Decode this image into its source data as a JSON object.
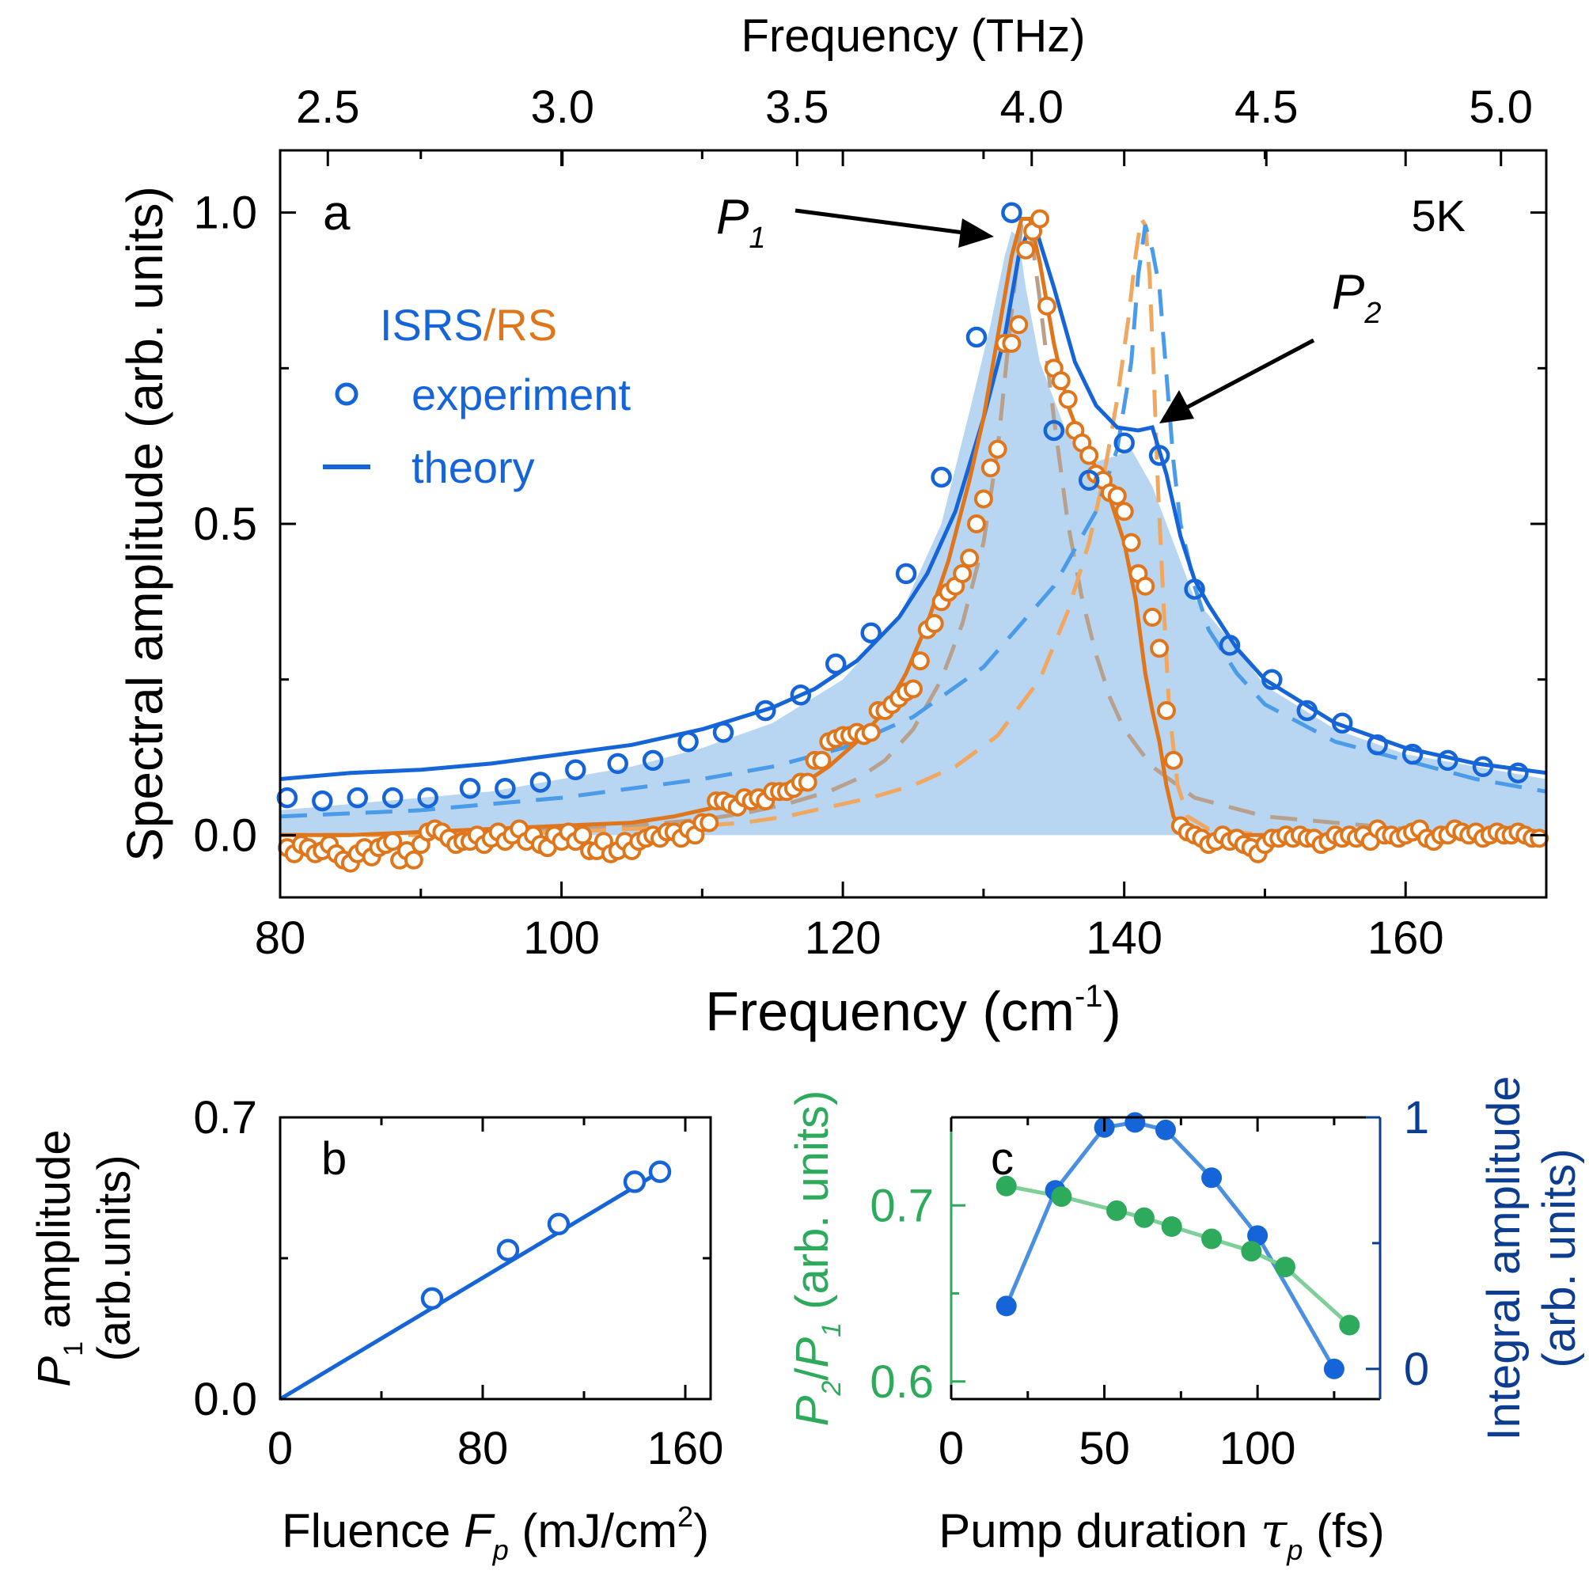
{
  "colors": {
    "blue": "#1565d8",
    "blue_light": "#4a9be8",
    "fill": "#b8d6f2",
    "orange": "#e0761c",
    "orange_dash": "#f0a860",
    "taupe": "#b8a08c",
    "green": "#2eaa5c",
    "green_line": "#7fcf99",
    "navy": "#0d3d91",
    "dot_blue": "#1565d8",
    "dot_line": "#4a8fe0"
  },
  "chart_data": [
    {
      "id": "a",
      "type": "line",
      "panel_label": "a",
      "temperature_label": "5K",
      "xlabel": "Frequency (cm",
      "xlabel_sup": "-1",
      "xlabel_end": ")",
      "xlim": [
        80,
        170
      ],
      "xticks": [
        80,
        100,
        120,
        140,
        160
      ],
      "top_xlabel": "Frequency (THz)",
      "top_xticks": [
        "2.5",
        "3.0",
        "3.5",
        "4.0",
        "4.5",
        "5.0"
      ],
      "top_xtick_values": [
        2.5,
        3.0,
        3.5,
        4.0,
        4.5,
        5.0
      ],
      "ylabel": "Spectral amplitude (arb. units)",
      "ylim": [
        -0.1,
        1.1
      ],
      "yticks": [
        "0.0",
        "0.5",
        "1.0"
      ],
      "ytick_values": [
        0.0,
        0.5,
        1.0
      ],
      "legend": {
        "title_isrs": "ISRS",
        "title_sep": "/",
        "title_rs": "RS",
        "experiment": "experiment",
        "theory": "theory"
      },
      "annotations": {
        "p1": "P",
        "p1_sub": "1",
        "p2": "P",
        "p2_sub": "2"
      },
      "isrs_experiment": {
        "x": [
          80.5,
          83,
          85.5,
          88,
          90.5,
          93.5,
          96,
          98.5,
          101,
          104,
          106.5,
          109,
          111.5,
          114.5,
          117,
          119.5,
          122,
          124.5,
          127,
          129.5,
          132,
          135,
          137.5,
          140,
          142.5,
          145,
          147.5,
          150.5,
          153,
          155.5,
          158,
          160.5,
          163,
          165.5,
          168
        ],
        "y": [
          0.06,
          0.055,
          0.06,
          0.06,
          0.06,
          0.075,
          0.075,
          0.085,
          0.105,
          0.115,
          0.12,
          0.15,
          0.165,
          0.2,
          0.225,
          0.275,
          0.325,
          0.42,
          0.575,
          0.8,
          1.0,
          0.65,
          0.57,
          0.63,
          0.61,
          0.395,
          0.305,
          0.25,
          0.2,
          0.18,
          0.145,
          0.13,
          0.12,
          0.11,
          0.1
        ]
      },
      "isrs_theory": {
        "x": [
          80,
          85,
          90,
          95,
          100,
          105,
          110,
          115,
          118,
          121,
          124,
          126,
          128,
          130,
          131.5,
          132.5,
          133.5,
          135,
          136.5,
          138,
          139.5,
          141,
          142,
          143,
          144,
          145,
          146,
          148,
          150,
          155,
          160,
          165,
          170
        ],
        "y": [
          0.09,
          0.1,
          0.105,
          0.115,
          0.13,
          0.145,
          0.17,
          0.205,
          0.235,
          0.28,
          0.35,
          0.42,
          0.52,
          0.67,
          0.8,
          0.93,
          0.99,
          0.88,
          0.76,
          0.69,
          0.655,
          0.65,
          0.655,
          0.58,
          0.48,
          0.41,
          0.37,
          0.3,
          0.25,
          0.18,
          0.14,
          0.115,
          0.1
        ]
      },
      "isrs_fill": {
        "x": [
          80,
          85,
          90,
          95,
          100,
          105,
          110,
          115,
          120,
          124,
          127,
          129,
          130.5,
          131.5,
          132,
          132.5,
          133,
          134,
          136,
          138,
          139.5,
          140.5,
          141,
          142,
          143,
          145,
          148,
          150,
          155,
          160,
          165,
          170
        ],
        "y": [
          0.04,
          0.05,
          0.06,
          0.07,
          0.09,
          0.11,
          0.14,
          0.18,
          0.25,
          0.35,
          0.5,
          0.68,
          0.82,
          0.93,
          0.97,
          0.96,
          0.88,
          0.76,
          0.64,
          0.6,
          0.61,
          0.62,
          0.6,
          0.56,
          0.5,
          0.38,
          0.3,
          0.24,
          0.17,
          0.13,
          0.11,
          0.09
        ]
      },
      "isrs_p2_dashed": {
        "x": [
          80,
          90,
          100,
          110,
          115,
          120,
          125,
          130,
          135,
          138,
          139.5,
          140.5,
          141,
          141.5,
          142,
          142.5,
          143,
          143.5,
          144,
          145,
          146,
          148,
          150,
          155,
          160,
          165,
          170
        ],
        "y": [
          0.03,
          0.04,
          0.06,
          0.09,
          0.11,
          0.14,
          0.19,
          0.27,
          0.4,
          0.52,
          0.62,
          0.76,
          0.9,
          0.98,
          0.94,
          0.88,
          0.74,
          0.6,
          0.5,
          0.4,
          0.33,
          0.26,
          0.21,
          0.15,
          0.12,
          0.09,
          0.07
        ]
      },
      "rs_experiment": {
        "x": [
          80.5,
          81,
          81.5,
          82,
          82.5,
          83,
          83.5,
          84,
          84.5,
          85,
          85.5,
          86,
          86.5,
          87,
          87.5,
          88,
          88.5,
          89,
          89.5,
          90,
          90.5,
          91,
          91.5,
          92,
          92.5,
          93,
          93.5,
          94,
          94.5,
          95,
          95.5,
          96,
          96.5,
          97,
          97.5,
          98,
          98.5,
          99,
          99.5,
          100,
          100.5,
          101,
          101.5,
          102,
          102.5,
          103,
          103.5,
          104,
          104.5,
          105,
          105.5,
          106,
          106.5,
          107,
          107.5,
          108,
          108.5,
          109,
          109.5,
          110,
          110.5,
          111,
          111.5,
          112,
          112.5,
          113,
          113.5,
          114,
          114.5,
          115,
          115.5,
          116,
          116.5,
          117,
          117.5,
          118,
          118.5,
          119,
          119.5,
          120,
          120.5,
          121,
          121.5,
          122,
          122.5,
          123,
          123.5,
          124,
          124.5,
          125,
          125.5,
          126,
          126.5,
          127,
          127.5,
          128,
          128.5,
          129,
          129.5,
          130,
          130.5,
          131,
          131.5,
          132,
          132.5,
          133,
          133.5,
          134,
          134.5,
          135,
          135.5,
          136,
          136.5,
          137,
          137.5,
          138,
          138.5,
          139,
          139.5,
          140,
          140.5,
          141,
          141.5,
          142,
          142.5,
          143,
          143.5,
          144,
          144.5,
          145,
          145.5,
          146,
          146.5,
          147,
          147.5,
          148,
          148.5,
          149,
          149.5,
          150,
          150.5,
          151,
          151.5,
          152,
          152.5,
          153,
          153.5,
          154,
          154.5,
          155,
          155.5,
          156,
          156.5,
          157,
          157.5,
          158,
          158.5,
          159,
          159.5,
          160,
          160.5,
          161,
          161.5,
          162,
          162.5,
          163,
          163.5,
          164,
          164.5,
          165,
          165.5,
          166,
          166.5,
          167,
          167.5,
          168,
          168.5,
          169,
          169.5
        ],
        "y": [
          -0.02,
          -0.03,
          -0.015,
          -0.02,
          -0.03,
          -0.025,
          -0.015,
          -0.03,
          -0.04,
          -0.045,
          -0.03,
          -0.02,
          -0.035,
          -0.02,
          -0.015,
          -0.01,
          -0.04,
          -0.025,
          -0.04,
          -0.015,
          0.005,
          0.01,
          0.005,
          -0.005,
          -0.015,
          -0.01,
          -0.01,
          0.0,
          -0.015,
          -0.005,
          0.005,
          -0.01,
          0.0,
          0.01,
          -0.01,
          0.0,
          -0.015,
          -0.02,
          0.0,
          -0.01,
          0.005,
          -0.01,
          0.0,
          -0.025,
          -0.025,
          -0.01,
          -0.03,
          -0.025,
          -0.01,
          -0.025,
          -0.01,
          -0.005,
          0.0,
          -0.005,
          0.005,
          0.005,
          -0.005,
          0.01,
          0.0,
          0.02,
          0.02,
          0.055,
          0.055,
          0.05,
          0.045,
          0.06,
          0.055,
          0.06,
          0.055,
          0.07,
          0.07,
          0.07,
          0.075,
          0.085,
          0.085,
          0.12,
          0.12,
          0.15,
          0.155,
          0.16,
          0.16,
          0.165,
          0.16,
          0.165,
          0.2,
          0.2,
          0.21,
          0.22,
          0.23,
          0.235,
          0.28,
          0.33,
          0.34,
          0.375,
          0.39,
          0.4,
          0.42,
          0.445,
          0.5,
          0.54,
          0.59,
          0.62,
          0.79,
          0.79,
          0.82,
          0.94,
          0.97,
          0.99,
          0.85,
          0.75,
          0.73,
          0.7,
          0.65,
          0.63,
          0.61,
          0.58,
          0.57,
          0.55,
          0.545,
          0.52,
          0.47,
          0.42,
          0.4,
          0.35,
          0.3,
          0.2,
          0.12,
          0.015,
          0.005,
          0.0,
          -0.005,
          -0.015,
          -0.01,
          0.0,
          -0.01,
          -0.005,
          -0.015,
          -0.02,
          -0.03,
          -0.015,
          -0.005,
          -0.005,
          0.0,
          -0.005,
          0.0,
          -0.005,
          -0.005,
          -0.015,
          -0.01,
          0.0,
          -0.005,
          0.0,
          -0.005,
          0.0,
          -0.01,
          0.01,
          0.0,
          0.0,
          -0.005,
          0.0,
          0.005,
          0.01,
          -0.005,
          -0.01,
          0.0,
          0.0,
          0.01,
          0.005,
          0.0,
          0.005,
          -0.005,
          0.0,
          0.005,
          0.0,
          0.0,
          0.005,
          0.0,
          -0.005,
          -0.005
        ]
      },
      "rs_theory": {
        "x": [
          80,
          85,
          90,
          95,
          100,
          105,
          108,
          111,
          114,
          117,
          119,
          121,
          123,
          124.5,
          126,
          127.5,
          129,
          130,
          131,
          132,
          132.7,
          133.3,
          134,
          135,
          136,
          137,
          138,
          139,
          140,
          140.8,
          141.5,
          142,
          142.5,
          143,
          143.5,
          144,
          145,
          148,
          150,
          155,
          160,
          165,
          170
        ],
        "y": [
          0.0,
          0.0,
          0.005,
          0.01,
          0.015,
          0.02,
          0.03,
          0.045,
          0.06,
          0.08,
          0.11,
          0.15,
          0.2,
          0.26,
          0.34,
          0.44,
          0.57,
          0.67,
          0.8,
          0.93,
          0.99,
          0.99,
          0.92,
          0.79,
          0.69,
          0.63,
          0.59,
          0.54,
          0.47,
          0.38,
          0.26,
          0.2,
          0.15,
          0.08,
          0.03,
          0.01,
          0.0,
          0.0,
          0.0,
          0.0,
          0.0,
          0.0,
          0.0
        ]
      },
      "rs_p1_dashed": {
        "x": [
          80,
          85,
          90,
          95,
          100,
          105,
          110,
          113,
          116,
          119,
          121,
          123,
          125,
          127,
          128.5,
          130,
          131,
          132,
          132.7,
          133.3,
          134,
          135,
          136,
          137,
          138,
          139,
          140,
          142,
          145,
          150,
          155,
          160,
          165,
          170
        ],
        "y": [
          0.0,
          0.0,
          0.003,
          0.006,
          0.01,
          0.015,
          0.025,
          0.035,
          0.05,
          0.07,
          0.09,
          0.12,
          0.17,
          0.25,
          0.34,
          0.47,
          0.62,
          0.84,
          0.98,
          0.98,
          0.86,
          0.67,
          0.5,
          0.38,
          0.29,
          0.22,
          0.17,
          0.11,
          0.06,
          0.03,
          0.02,
          0.01,
          0.005,
          0.0
        ]
      },
      "rs_p2_dashed": {
        "x": [
          80,
          90,
          100,
          105,
          110,
          113,
          116,
          119,
          122,
          125,
          128,
          131,
          134,
          136,
          137.5,
          138.5,
          139.5,
          140.3,
          140.8,
          141.2,
          141.5,
          141.8,
          142.1,
          142.4,
          142.8,
          143.2,
          143.8,
          144.5,
          146,
          150,
          160,
          170
        ],
        "y": [
          0.0,
          0.0,
          0.005,
          0.01,
          0.015,
          0.02,
          0.03,
          0.045,
          0.06,
          0.08,
          0.11,
          0.16,
          0.25,
          0.36,
          0.47,
          0.57,
          0.7,
          0.83,
          0.93,
          0.99,
          0.98,
          0.9,
          0.74,
          0.56,
          0.37,
          0.2,
          0.08,
          0.03,
          0.01,
          0.0,
          0.0,
          0.0
        ]
      }
    },
    {
      "id": "b",
      "type": "line",
      "panel_label": "b",
      "xlabel": "Fluence ",
      "xlabel_italic": "F",
      "xlabel_sub": "p",
      "xlabel_end": " (mJ/cm",
      "xlabel_sup": "2",
      "xlabel_close": ")",
      "xlim": [
        0,
        170
      ],
      "xticks": [
        0,
        80,
        160
      ],
      "ylabel_line1_italic": "P",
      "ylabel_line1_sub": "1",
      "ylabel_line1": " amplitude",
      "ylabel_line2": "(arb.units)",
      "ylim": [
        0,
        0.7
      ],
      "yticks": [
        "0.0",
        "0.7"
      ],
      "ytick_values": [
        0.0,
        0.7
      ],
      "points": {
        "x": [
          60,
          90,
          110,
          140,
          150
        ],
        "y": [
          0.25,
          0.37,
          0.435,
          0.54,
          0.565
        ]
      },
      "fit": {
        "x": [
          0,
          150
        ],
        "y": [
          0.0,
          0.565
        ]
      }
    },
    {
      "id": "c",
      "type": "line",
      "panel_label": "c",
      "xlabel": "Pump duration ",
      "xlabel_italic": "τ",
      "xlabel_sub": "p",
      "xlabel_end": " (fs)",
      "xlim": [
        0,
        140
      ],
      "xticks": [
        0,
        50,
        100
      ],
      "ylabel_left_italic1": "P",
      "ylabel_left_sub1": "2",
      "ylabel_left_mid": "/",
      "ylabel_left_italic2": "P",
      "ylabel_left_sub2": "1",
      "ylabel_left_end": " (arb. units)",
      "ylim_left": [
        0.59,
        0.75
      ],
      "yticks_left": [
        "0.6",
        "0.7"
      ],
      "ytick_values_left": [
        0.6,
        0.7
      ],
      "ylabel_right_line1": "Integral amplitude",
      "ylabel_right_line2": "(arb. units)",
      "ylim_right": [
        -0.12,
        1.0
      ],
      "yticks_right": [
        "0",
        "1"
      ],
      "ytick_values_right": [
        0,
        1
      ],
      "series": [
        {
          "name": "P2/P1",
          "axis": "left",
          "x": [
            18,
            36,
            54,
            63,
            72,
            85,
            98,
            109,
            130
          ],
          "y": [
            0.711,
            0.705,
            0.697,
            0.693,
            0.688,
            0.681,
            0.674,
            0.665,
            0.632
          ]
        },
        {
          "name": "Integral amplitude",
          "axis": "right",
          "x": [
            18,
            34,
            50,
            60,
            70,
            85,
            100,
            125
          ],
          "y": [
            0.25,
            0.71,
            0.96,
            0.98,
            0.95,
            0.76,
            0.53,
            0.0
          ]
        }
      ]
    }
  ]
}
